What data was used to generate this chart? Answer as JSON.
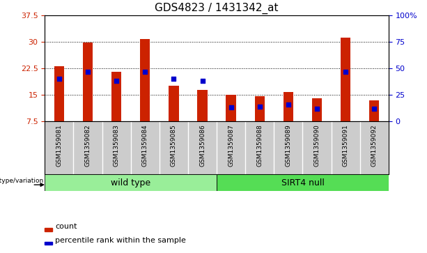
{
  "title": "GDS4823 / 1431342_at",
  "samples": [
    "GSM1359081",
    "GSM1359082",
    "GSM1359083",
    "GSM1359084",
    "GSM1359085",
    "GSM1359086",
    "GSM1359087",
    "GSM1359088",
    "GSM1359089",
    "GSM1359090",
    "GSM1359091",
    "GSM1359092"
  ],
  "counts": [
    23.0,
    29.8,
    21.5,
    30.7,
    17.5,
    16.5,
    15.1,
    14.7,
    15.8,
    14.0,
    31.2,
    13.5
  ],
  "percentiles": [
    40,
    47,
    38,
    47,
    40,
    38,
    13,
    14,
    16,
    12,
    47,
    12
  ],
  "ymin": 7.5,
  "ymax": 37.5,
  "yticks": [
    7.5,
    15,
    22.5,
    30,
    37.5
  ],
  "ytick_labels": [
    "7.5",
    "15",
    "22.5",
    "30",
    "37.5"
  ],
  "y2min": 0,
  "y2max": 100,
  "y2ticks": [
    0,
    25,
    50,
    75,
    100
  ],
  "y2tick_labels": [
    "0",
    "25",
    "50",
    "75",
    "100%"
  ],
  "bar_color": "#cc2200",
  "percentile_color": "#0000cc",
  "groups": [
    {
      "label": "wild type",
      "start": 0,
      "end": 6,
      "color": "#99ee99"
    },
    {
      "label": "SIRT4 null",
      "start": 6,
      "end": 12,
      "color": "#55dd55"
    }
  ],
  "genotype_label": "genotype/variation",
  "legend_count_label": "count",
  "legend_percentile_label": "percentile rank within the sample",
  "bar_width": 0.35,
  "background_color": "#ffffff",
  "plot_bg": "#ffffff",
  "sample_bg": "#cccccc",
  "tick_label_color_left": "#cc2200",
  "tick_label_color_right": "#0000cc",
  "title_fontsize": 11,
  "axis_fontsize": 8,
  "sample_fontsize": 6.5,
  "legend_fontsize": 8,
  "group_fontsize": 9
}
